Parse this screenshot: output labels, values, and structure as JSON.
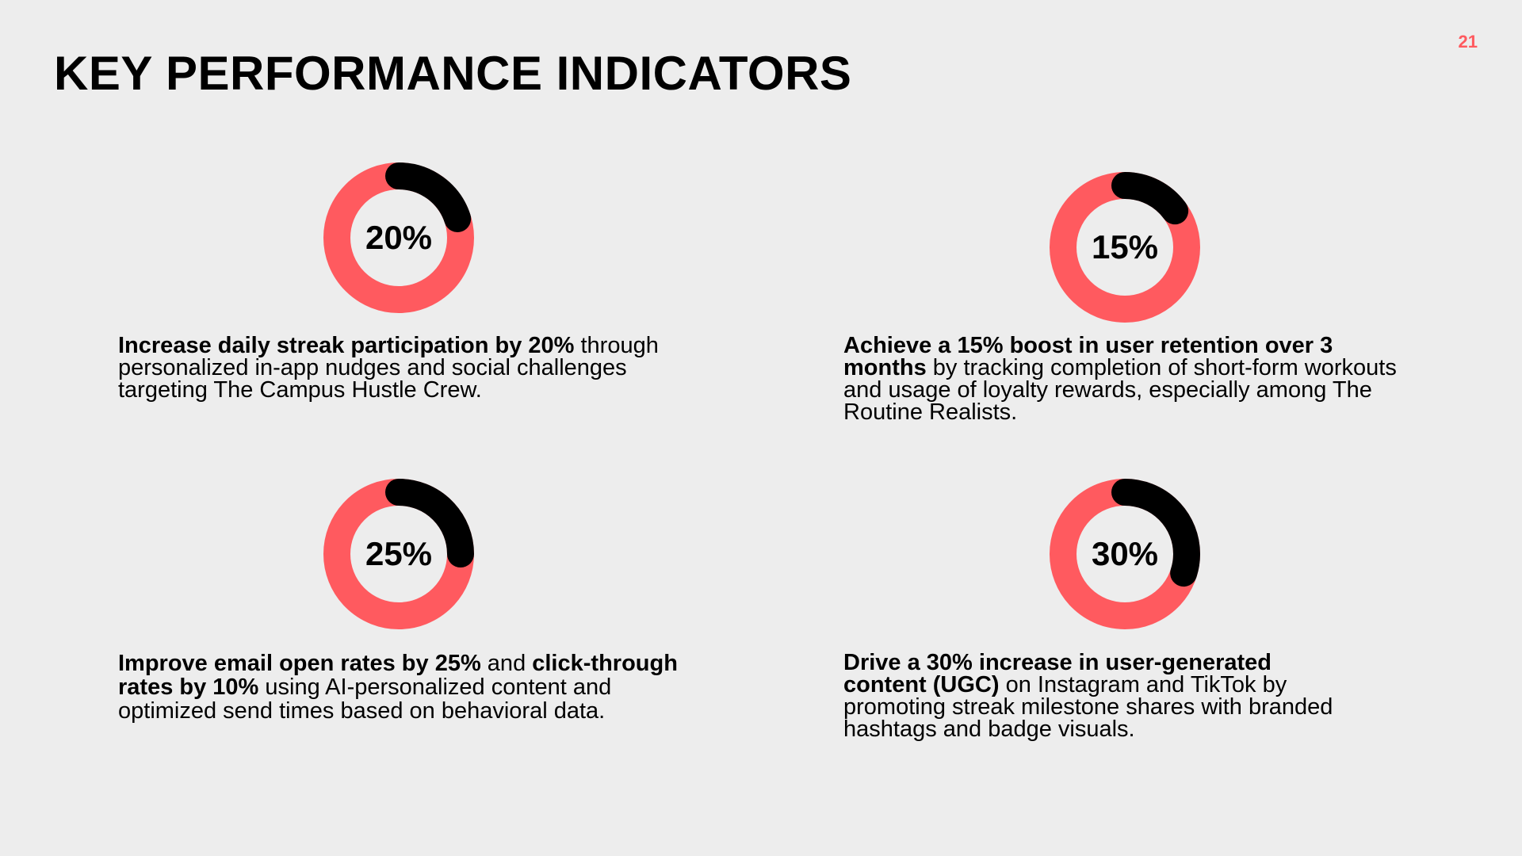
{
  "slide": {
    "page_number": "21",
    "title": "KEY PERFORMANCE INDICATORS"
  },
  "colors": {
    "background": "#ededed",
    "accent": "#ff5a5f",
    "progress": "#000000"
  },
  "kpis": [
    {
      "value_label": "20%",
      "percent": 20,
      "bold_1": "Increase daily streak participation by 20%",
      "text_1": " through personalized in-app nudges and social challenges targeting The Campus Hustle Crew.",
      "bold_2": "",
      "text_2": ""
    },
    {
      "value_label": "15%",
      "percent": 15,
      "bold_1": "Achieve a 15% boost in user retention over 3 months",
      "text_1": " by tracking completion of short-form workouts and usage of loyalty rewards, especially among The Routine Realists.",
      "bold_2": "",
      "text_2": ""
    },
    {
      "value_label": "25%",
      "percent": 25,
      "bold_1": "Improve email open rates by 25%",
      "text_1": " and ",
      "bold_2": "click-through rates by 10%",
      "text_2": " using AI-personalized content and optimized send times based on behavioral data."
    },
    {
      "value_label": "30%",
      "percent": 30,
      "bold_1": "Drive a 30% increase in user-generated content (UGC)",
      "text_1": " on Instagram and TikTok by promoting streak milestone shares with branded hashtags and badge visuals.",
      "bold_2": "",
      "text_2": ""
    }
  ]
}
